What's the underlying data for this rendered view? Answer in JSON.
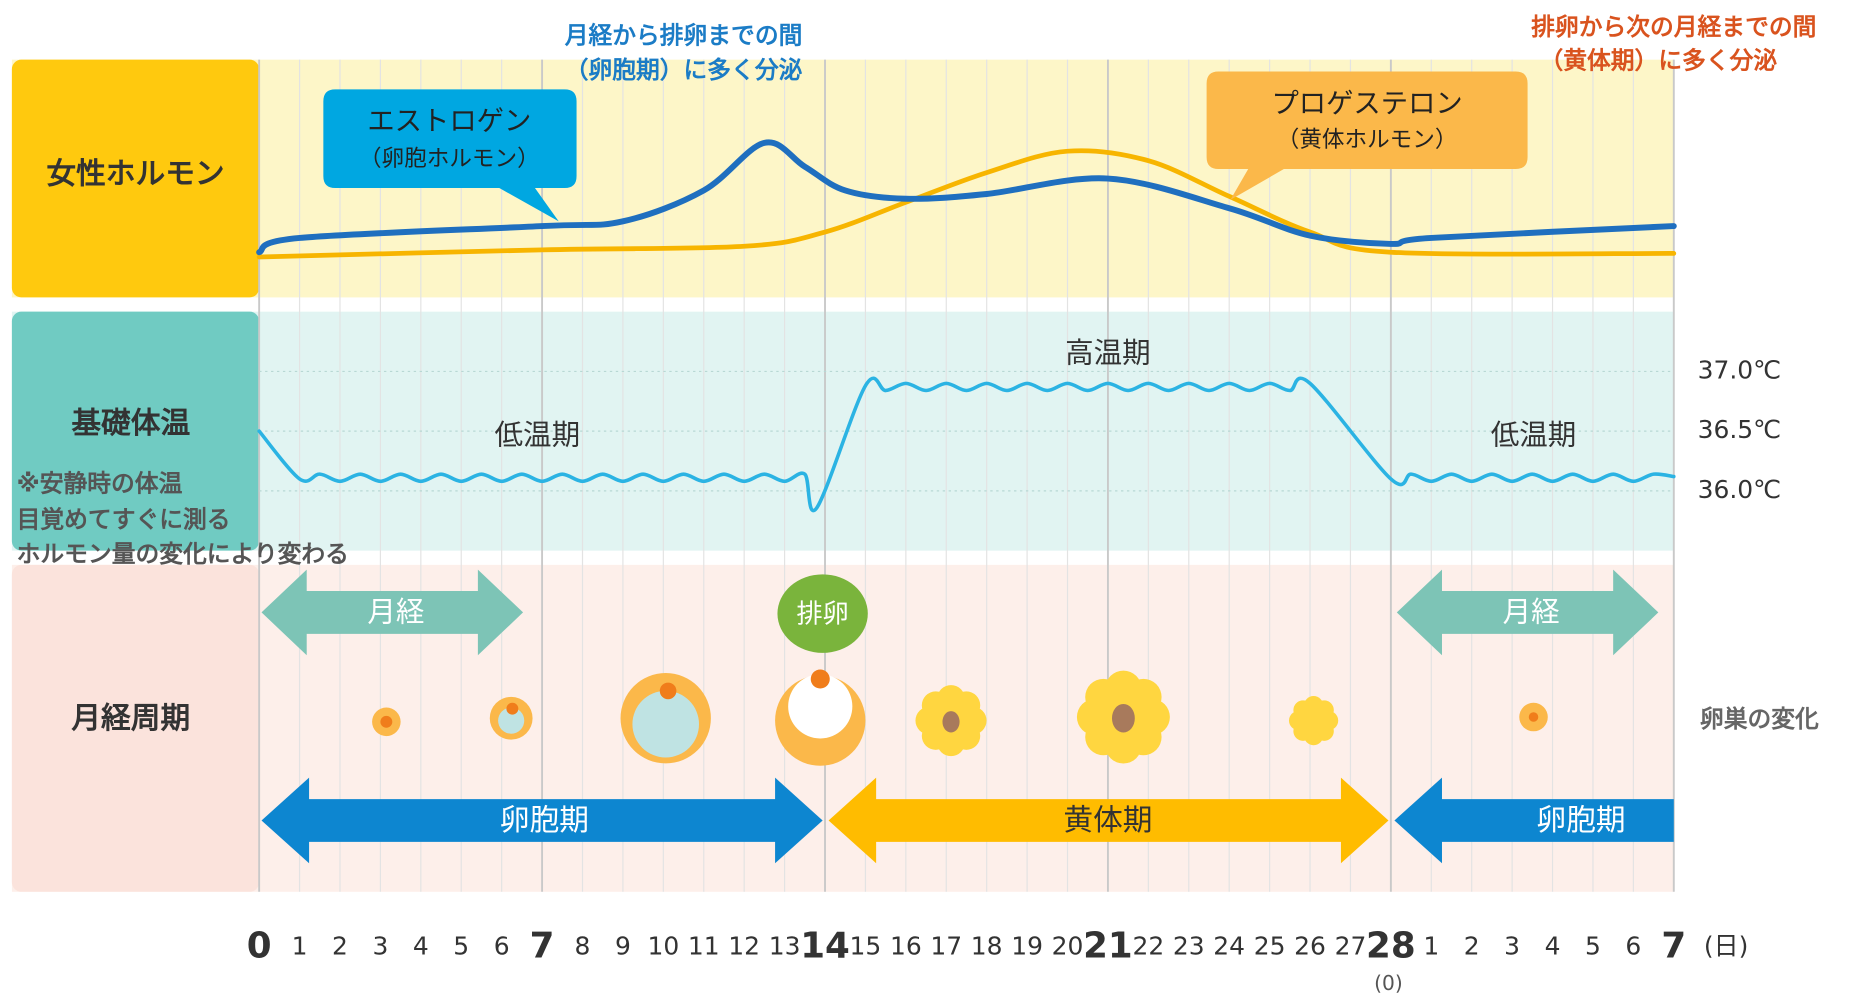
{
  "chart_data": {
    "type": "cycle",
    "annotations": {
      "follicular_secretion": [
        "月経から排卵までの間",
        "（卵胞期）に多く分泌"
      ],
      "luteal_secretion": [
        "排卵から次の月経までの間",
        "（黄体期）に多く分泌"
      ]
    },
    "panels": [
      "女性ホルモン",
      "基礎体温",
      "月経周期"
    ],
    "xlim": [
      0,
      35
    ],
    "xticks": [
      0,
      1,
      2,
      3,
      4,
      5,
      6,
      7,
      8,
      9,
      10,
      11,
      12,
      13,
      14,
      15,
      16,
      17,
      18,
      19,
      20,
      21,
      22,
      23,
      24,
      25,
      26,
      27,
      28,
      {
        "value": 29,
        "label": "1"
      },
      {
        "value": 30,
        "label": "2"
      },
      {
        "value": 31,
        "label": "3"
      },
      {
        "value": 32,
        "label": "4"
      },
      {
        "value": 33,
        "label": "5"
      },
      {
        "value": 34,
        "label": "6"
      },
      {
        "value": 35,
        "label": "7"
      }
    ],
    "x_unit": "(日)",
    "x_sublabel": "(0)",
    "hormone_ylim": [
      0,
      100
    ],
    "hormones": [
      {
        "name": "エストロゲン",
        "subname": "（卵胞ホルモン）",
        "color": "#1f6fbf",
        "x": [
          0,
          1,
          7,
          9,
          11,
          12.5,
          13.5,
          14.5,
          16,
          18,
          21,
          24,
          26,
          28,
          29,
          35
        ],
        "values": [
          19,
          25,
          30,
          32,
          45,
          65,
          55,
          45,
          41.5,
          43.5,
          50,
          37.5,
          26,
          22.5,
          25,
          30
        ]
      },
      {
        "name": "プロゲステロン",
        "subname": "（黄体ホルモン）",
        "color": "#f7b500",
        "x": [
          0,
          7,
          12,
          14,
          16,
          18,
          20,
          22,
          24,
          26,
          28,
          35
        ],
        "values": [
          17,
          20,
          21.5,
          27.5,
          40,
          52.5,
          61.5,
          57.5,
          42.5,
          27.5,
          19,
          18.5
        ]
      }
    ],
    "temperature": {
      "color": "#2bb3e3",
      "ylim": [
        35.5,
        37.5
      ],
      "yticks": [
        {
          "value": 37,
          "label": "37.0℃"
        },
        {
          "value": 36.5,
          "label": "36.5℃"
        },
        {
          "value": 36,
          "label": "36.0℃"
        }
      ],
      "x": [
        0,
        1,
        1.5,
        2,
        2.5,
        3,
        3.5,
        4,
        4.5,
        5,
        5.5,
        6,
        6.5,
        7,
        7.5,
        8,
        8.5,
        9,
        9.5,
        10,
        10.5,
        11,
        11.5,
        12,
        12.5,
        13,
        13.5,
        13.8,
        15,
        15.5,
        16,
        16.5,
        17,
        17.5,
        18,
        18.5,
        19,
        19.5,
        20,
        20.5,
        21,
        21.5,
        22,
        22.5,
        23,
        23.5,
        24,
        24.5,
        25,
        25.5,
        26,
        28,
        28.5,
        29,
        29.5,
        30,
        30.5,
        31,
        31.5,
        32,
        32.5,
        33,
        33.5,
        34,
        34.5,
        35
      ],
      "values": [
        36.5,
        36.1,
        36.14,
        36.08,
        36.14,
        36.08,
        36.14,
        36.08,
        36.14,
        36.08,
        36.14,
        36.08,
        36.14,
        36.08,
        36.14,
        36.08,
        36.14,
        36.08,
        36.14,
        36.08,
        36.14,
        36.08,
        36.14,
        36.08,
        36.14,
        36.08,
        36.14,
        35.86,
        36.88,
        36.84,
        36.9,
        36.84,
        36.9,
        36.84,
        36.9,
        36.84,
        36.9,
        36.84,
        36.9,
        36.84,
        36.9,
        36.84,
        36.9,
        36.84,
        36.9,
        36.84,
        36.9,
        36.84,
        36.9,
        36.84,
        36.9,
        36.1,
        36.14,
        36.08,
        36.14,
        36.08,
        36.14,
        36.08,
        36.14,
        36.08,
        36.14,
        36.08,
        36.14,
        36.08,
        36.14,
        36.12
      ],
      "phases": {
        "low": "低温期",
        "high": "高温期"
      },
      "notes": [
        "※安静時の体温",
        "目覚めてすぐに測る",
        "ホルモン量の変化により変わる"
      ]
    },
    "cycle": {
      "menstruation": "月経",
      "ovulation": "排卵",
      "ovary_change": "卵巣の変化",
      "follicular": "卵胞期",
      "luteal": "黄体期"
    }
  }
}
